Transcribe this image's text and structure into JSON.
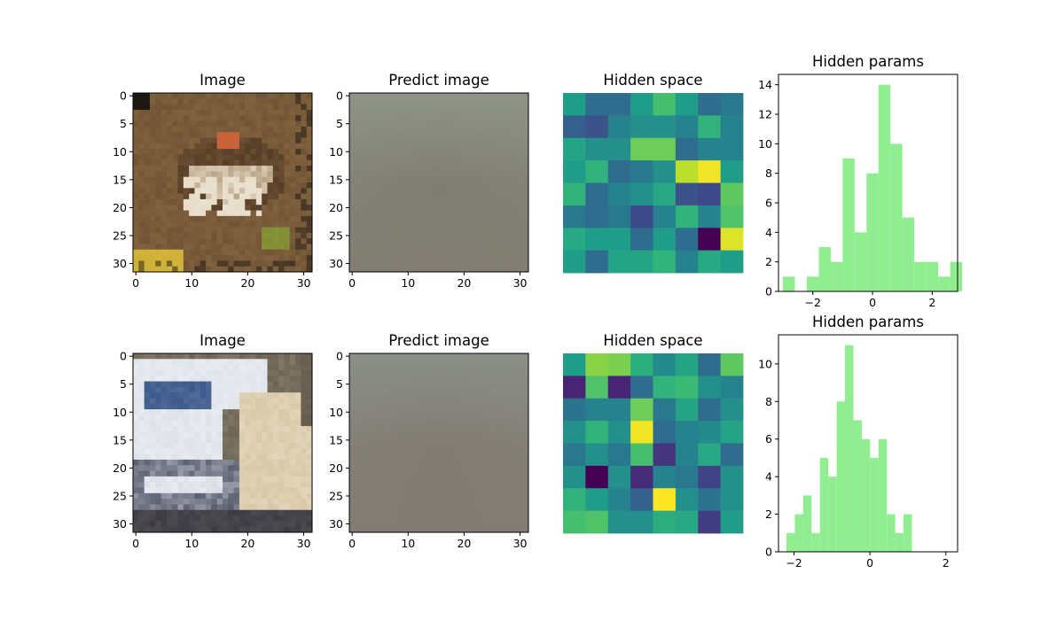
{
  "colors": {
    "hist_fill": "#90ee90",
    "axis": "#000000",
    "viridis_low": "#440154",
    "viridis_high": "#fde725"
  },
  "chart_data": [
    {
      "type": "heatmap",
      "panel": "row1-image",
      "title": "Image",
      "description_colors": "frog photo, 32x32 RGB",
      "xlim": [
        0,
        31
      ],
      "ylim": [
        31,
        0
      ],
      "xticks": [
        0,
        10,
        20,
        30
      ],
      "yticks": [
        0,
        5,
        10,
        15,
        20,
        25,
        30
      ],
      "palette": {
        "background": "#8a6a44",
        "frog_light": "#e6dcc8",
        "frog_dark": "#4a3420",
        "eye": "#c8643c",
        "accent": "#d2b43c"
      }
    },
    {
      "type": "heatmap",
      "panel": "row1-predict",
      "title": "Predict image",
      "xlim": [
        0,
        31
      ],
      "ylim": [
        31,
        0
      ],
      "xticks": [
        0,
        10,
        20,
        30
      ],
      "yticks": [
        0,
        5,
        10,
        15,
        20,
        25,
        30
      ],
      "palette": {
        "fill": "#807e72",
        "edge": "#8e9286"
      }
    },
    {
      "type": "heatmap",
      "panel": "row1-hidden",
      "title": "Hidden space",
      "colormap": "viridis",
      "values": [
        [
          0.55,
          0.35,
          0.35,
          0.55,
          0.7,
          0.55,
          0.35,
          0.4
        ],
        [
          0.3,
          0.25,
          0.45,
          0.5,
          0.5,
          0.45,
          0.65,
          0.45
        ],
        [
          0.58,
          0.5,
          0.5,
          0.78,
          0.78,
          0.35,
          0.45,
          0.45
        ],
        [
          0.55,
          0.65,
          0.35,
          0.4,
          0.5,
          0.9,
          0.98,
          0.55
        ],
        [
          0.65,
          0.35,
          0.45,
          0.5,
          0.6,
          0.25,
          0.22,
          0.75
        ],
        [
          0.4,
          0.35,
          0.4,
          0.22,
          0.45,
          0.65,
          0.45,
          0.72
        ],
        [
          0.6,
          0.55,
          0.55,
          0.35,
          0.55,
          0.35,
          0.0,
          0.95
        ],
        [
          0.55,
          0.35,
          0.58,
          0.58,
          0.65,
          0.45,
          0.6,
          0.55
        ]
      ]
    },
    {
      "type": "bar",
      "panel": "row1-hist",
      "title": "Hidden params",
      "bins_start": -3.0,
      "bin_width": 0.4,
      "counts": [
        1,
        0,
        1,
        3,
        2,
        9,
        4,
        8,
        14,
        10,
        5,
        2,
        2,
        1,
        2
      ],
      "xlim": [
        -3.15,
        2.85
      ],
      "ylim": [
        0,
        14.7
      ],
      "xticks": [
        -2,
        0,
        2
      ],
      "yticks": [
        0,
        2,
        4,
        6,
        8,
        10,
        12,
        14
      ]
    },
    {
      "type": "heatmap",
      "panel": "row2-image",
      "title": "Image",
      "description_colors": "truck photo, 32x32 RGB",
      "xlim": [
        0,
        31
      ],
      "ylim": [
        31,
        0
      ],
      "xticks": [
        0,
        10,
        20,
        30
      ],
      "yticks": [
        0,
        5,
        10,
        15,
        20,
        25,
        30
      ],
      "palette": {
        "background": "#6e6456",
        "cab": "#e8ecf0",
        "window": "#3c5a8c",
        "cargo": "#d8c8a8",
        "grille": "#5a5e6e",
        "shadow": "#3c3c46"
      }
    },
    {
      "type": "heatmap",
      "panel": "row2-predict",
      "title": "Predict image",
      "xlim": [
        0,
        31
      ],
      "ylim": [
        31,
        0
      ],
      "xticks": [
        0,
        10,
        20,
        30
      ],
      "yticks": [
        0,
        5,
        10,
        15,
        20,
        25,
        30
      ],
      "palette": {
        "fill": "#827c74",
        "edge": "#8a8e86"
      }
    },
    {
      "type": "heatmap",
      "panel": "row2-hidden",
      "title": "Hidden space",
      "colormap": "viridis",
      "values": [
        [
          0.55,
          0.82,
          0.8,
          0.62,
          0.48,
          0.58,
          0.35,
          0.75
        ],
        [
          0.1,
          0.72,
          0.1,
          0.35,
          0.65,
          0.68,
          0.5,
          0.45
        ],
        [
          0.38,
          0.45,
          0.45,
          0.78,
          0.4,
          0.58,
          0.35,
          0.5
        ],
        [
          0.5,
          0.65,
          0.5,
          0.98,
          0.35,
          0.45,
          0.48,
          0.58
        ],
        [
          0.4,
          0.5,
          0.4,
          0.7,
          0.15,
          0.45,
          0.6,
          0.35
        ],
        [
          0.5,
          0.0,
          0.5,
          0.12,
          0.45,
          0.4,
          0.2,
          0.5
        ],
        [
          0.65,
          0.55,
          0.45,
          0.3,
          1.0,
          0.5,
          0.38,
          0.5
        ],
        [
          0.7,
          0.72,
          0.5,
          0.5,
          0.62,
          0.6,
          0.18,
          0.55
        ]
      ]
    },
    {
      "type": "bar",
      "panel": "row2-hist",
      "title": "Hidden params",
      "bins_start": -2.2,
      "bin_width": 0.2205,
      "counts": [
        1,
        2,
        3,
        1,
        5,
        4,
        8,
        11,
        7,
        6,
        5,
        6,
        2,
        1,
        2
      ],
      "xlim": [
        -2.41,
        2.31
      ],
      "ylim": [
        0,
        11.55
      ],
      "xticks": [
        -2,
        0,
        2
      ],
      "yticks": [
        0,
        2,
        4,
        6,
        8,
        10
      ]
    }
  ]
}
